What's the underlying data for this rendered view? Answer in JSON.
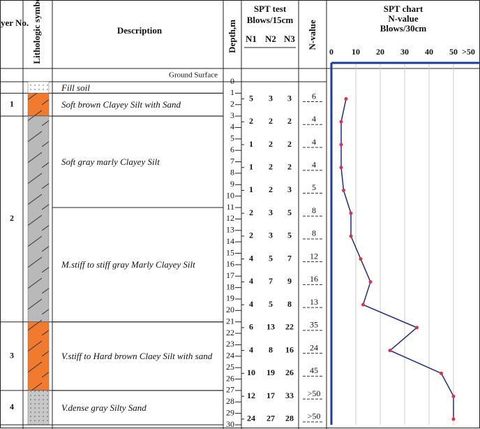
{
  "header": {
    "layer_no": "layer No.",
    "lithologic_symbol": "Lithologic symbol",
    "description": "Description",
    "depth": "Depth,m",
    "spt_test": "SPT test",
    "blows_15": "Blows/15cm",
    "n1": "N1",
    "n2": "N2",
    "n3": "N3",
    "n_value": "N-value"
  },
  "ground_surface": "Ground Surface",
  "depth_range": [
    0,
    30
  ],
  "depth_ticks": [
    0,
    1,
    2,
    3,
    4,
    5,
    6,
    7,
    8,
    9,
    10,
    11,
    12,
    13,
    14,
    15,
    16,
    17,
    18,
    19,
    20,
    21,
    22,
    23,
    24,
    25,
    26,
    27,
    28,
    29,
    30
  ],
  "layers": [
    {
      "top": 0,
      "bottom": 1,
      "color": "#ffffff",
      "pattern": "dots"
    },
    {
      "no": "1",
      "top": 1,
      "bottom": 3,
      "color": "#f07b2e",
      "pattern": "hatch"
    },
    {
      "no": "2",
      "top": 3,
      "bottom": 21,
      "color": "#b9b9b9",
      "pattern": "hatch"
    },
    {
      "no": "3",
      "top": 21,
      "bottom": 27,
      "color": "#f07b2e",
      "pattern": "hatch"
    },
    {
      "no": "4",
      "top": 27,
      "bottom": 30,
      "color": "#c8c8c8",
      "pattern": "dots"
    }
  ],
  "units": [
    {
      "top": 0,
      "bottom": 1,
      "description": "Fill soil"
    },
    {
      "top": 1,
      "bottom": 3,
      "description": "Soft brown Clayey Silt with Sand"
    },
    {
      "top": 3,
      "bottom": 11,
      "description": "Soft gray marly Clayey Silt"
    },
    {
      "top": 11,
      "bottom": 21,
      "description": "M.stiff  to stiff gray Marly Clayey Silt"
    },
    {
      "top": 21,
      "bottom": 27,
      "description": "V.stiff to Hard brown Claey Silt with sand"
    },
    {
      "top": 27,
      "bottom": 30,
      "description": "V.dense gray Silty Sand"
    }
  ],
  "spt": [
    {
      "depth": 1.5,
      "n1": 5,
      "n2": 3,
      "n3": 3,
      "n_value": 6
    },
    {
      "depth": 3.5,
      "n1": 2,
      "n2": 2,
      "n3": 2,
      "n_value": 4
    },
    {
      "depth": 5.5,
      "n1": 1,
      "n2": 2,
      "n3": 2,
      "n_value": 4
    },
    {
      "depth": 7.5,
      "n1": 1,
      "n2": 2,
      "n3": 2,
      "n_value": 4
    },
    {
      "depth": 9.5,
      "n1": 1,
      "n2": 2,
      "n3": 3,
      "n_value": 5
    },
    {
      "depth": 11.5,
      "n1": 2,
      "n2": 3,
      "n3": 5,
      "n_value": 8
    },
    {
      "depth": 13.5,
      "n1": 2,
      "n2": 3,
      "n3": 5,
      "n_value": 8
    },
    {
      "depth": 15.5,
      "n1": 4,
      "n2": 5,
      "n3": 7,
      "n_value": 12
    },
    {
      "depth": 17.5,
      "n1": 4,
      "n2": 7,
      "n3": 9,
      "n_value": 16
    },
    {
      "depth": 19.5,
      "n1": 4,
      "n2": 5,
      "n3": 8,
      "n_value": 13
    },
    {
      "depth": 21.5,
      "n1": 6,
      "n2": 13,
      "n3": 22,
      "n_value": 35
    },
    {
      "depth": 23.5,
      "n1": 4,
      "n2": 8,
      "n3": 16,
      "n_value": 24
    },
    {
      "depth": 25.5,
      "n1": 10,
      "n2": 19,
      "n3": 26,
      "n_value": 45
    },
    {
      "depth": 27.5,
      "n1": 12,
      "n2": 17,
      "n3": 33,
      "n_value": {
        "value": 50,
        "label": ">50"
      }
    },
    {
      "depth": 29.5,
      "n1": 24,
      "n2": 27,
      "n3": 28,
      "n_value": {
        "value": 50,
        "label": ">50"
      }
    }
  ],
  "chart": {
    "title": "SPT chart",
    "subtitle": "N-value",
    "unit": "Blows/30cm",
    "xlim": [
      0,
      60
    ],
    "xticks": [
      0,
      10,
      20,
      30,
      40,
      50
    ],
    "over_label": ">50",
    "line_color": "#1f2a8a",
    "marker_color": "#e0304a",
    "axis_color": "#1f3aa0",
    "grid": true
  }
}
